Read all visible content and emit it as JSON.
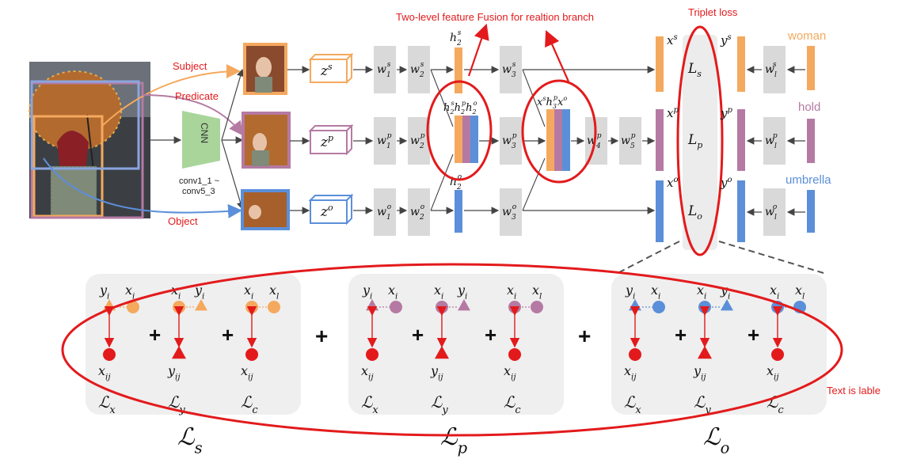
{
  "annotations": {
    "fusion_title": "Two-level feature Fusion for realtion branch",
    "triplet_loss": "Triplet loss",
    "text_is_label": "Text is lable",
    "subject": "Subject",
    "predicate": "Predicate",
    "object": "Object"
  },
  "cnn": {
    "name": "CNN",
    "layers_line1": "conv1_1 ~",
    "layers_line2": "conv5_3"
  },
  "branches": [
    {
      "key": "s",
      "z": "z",
      "zsup": "s",
      "w1": "1",
      "w2": "2",
      "w3": "3",
      "x": "x",
      "y": "y",
      "L": "L",
      "Lsub": "s",
      "wl": "l",
      "word": "woman",
      "color": "#f4a95e"
    },
    {
      "key": "p",
      "z": "z",
      "zsup": "p",
      "w1": "1",
      "w2": "2",
      "w3": "3",
      "w4": "4",
      "w5": "5",
      "x": "x",
      "y": "y",
      "L": "L",
      "Lsub": "p",
      "wl": "l",
      "word": "hold",
      "color": "#b57aa3"
    },
    {
      "key": "o",
      "z": "z",
      "zsup": "o",
      "w1": "1",
      "w2": "2",
      "w3": "3",
      "x": "x",
      "y": "y",
      "L": "L",
      "Lsub": "o",
      "wl": "l",
      "word": "umbrella",
      "color": "#5b8fd9"
    }
  ],
  "hidden": {
    "h": "h",
    "fusion1": "h2s h2p h2o",
    "fusion2": "xs h3p xo",
    "sub2": "2",
    "sub3": "3"
  },
  "loss_groups": [
    {
      "name": "L",
      "sub": "s",
      "color": "#f4a95e"
    },
    {
      "name": "L",
      "sub": "p",
      "color": "#b57aa3"
    },
    {
      "name": "L",
      "sub": "o",
      "color": "#5b8fd9"
    }
  ],
  "loss_terms": {
    "x_label": "x",
    "x_sub": "i",
    "y_label": "y",
    "y_sub": "i",
    "xl_sub": "l",
    "neg_x_sub": "ij",
    "neg_y_sub": "ij",
    "terms": [
      "x",
      "y",
      "c"
    ],
    "plus": "+"
  },
  "colors": {
    "accent_red": "#e31a1c",
    "subject": "#f4a95e",
    "predicate": "#b57aa3",
    "object": "#5b8fd9",
    "layer_gray": "#d9d9d9",
    "cnn_green": "#a9d59b"
  }
}
